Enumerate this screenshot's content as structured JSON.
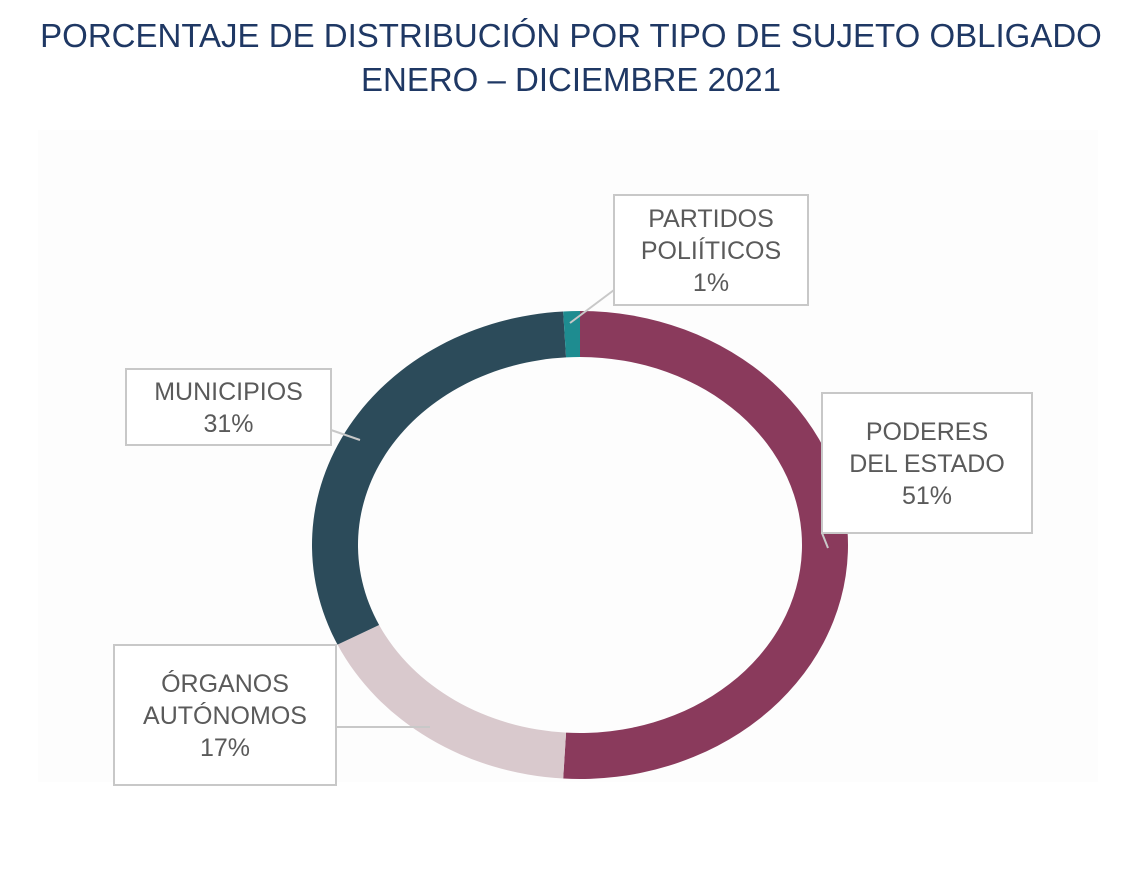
{
  "title": {
    "line1": "PORCENTAJE DE DISTRIBUCIÓN POR TIPO DE SUJETO OBLIGADO",
    "line2": "ENERO – DICIEMBRE 2021"
  },
  "chart_data": {
    "type": "pie",
    "style": "donut",
    "title": "PORCENTAJE DE DISTRIBUCIÓN POR TIPO DE SUJETO OBLIGADO ENERO – DICIEMBRE 2021",
    "slices": [
      {
        "label_lines": [
          "PODERES",
          "DEL ESTADO"
        ],
        "value": 51,
        "value_label": "51%",
        "color": "#8a3a5c"
      },
      {
        "label_lines": [
          "ÓRGANOS",
          "AUTÓNOMOS"
        ],
        "value": 17,
        "value_label": "17%",
        "color": "#d9c9cd"
      },
      {
        "label_lines": [
          "MUNICIPIOS"
        ],
        "value": 31,
        "value_label": "31%",
        "color": "#2c4b5a"
      },
      {
        "label_lines": [
          "PARTIDOS",
          "POLIÍTICOS"
        ],
        "value": 1,
        "value_label": "1%",
        "color": "#1e8c90"
      }
    ]
  }
}
